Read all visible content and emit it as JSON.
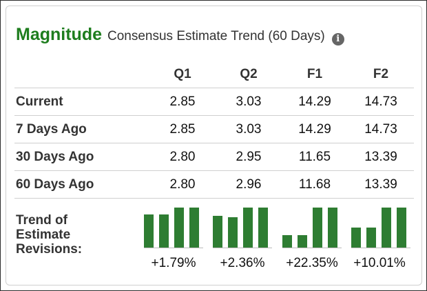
{
  "header": {
    "title": "Magnitude",
    "subtitle": "Consensus Estimate Trend (60 Days)",
    "info_icon": "info-icon"
  },
  "table": {
    "columns": [
      "Q1",
      "Q2",
      "F1",
      "F2"
    ],
    "rows": [
      {
        "label": "Current",
        "values": [
          "2.85",
          "3.03",
          "14.29",
          "14.73"
        ]
      },
      {
        "label": "7 Days Ago",
        "values": [
          "2.85",
          "3.03",
          "14.29",
          "14.73"
        ]
      },
      {
        "label": "30 Days Ago",
        "values": [
          "2.80",
          "2.95",
          "11.65",
          "13.39"
        ]
      },
      {
        "label": "60 Days Ago",
        "values": [
          "2.80",
          "2.96",
          "11.68",
          "13.39"
        ]
      }
    ]
  },
  "trend": {
    "label_lines": [
      "Trend of",
      "Estimate",
      "Revisions:"
    ],
    "color": "#2e7d32",
    "groups": [
      {
        "column": "Q1",
        "pct": "+1.79%"
      },
      {
        "column": "Q2",
        "pct": "+2.36%"
      },
      {
        "column": "F1",
        "pct": "+22.35%"
      },
      {
        "column": "F2",
        "pct": "+10.01%"
      }
    ]
  },
  "colors": {
    "title_green": "#1e7d1e",
    "bar_green": "#2e7d32"
  }
}
